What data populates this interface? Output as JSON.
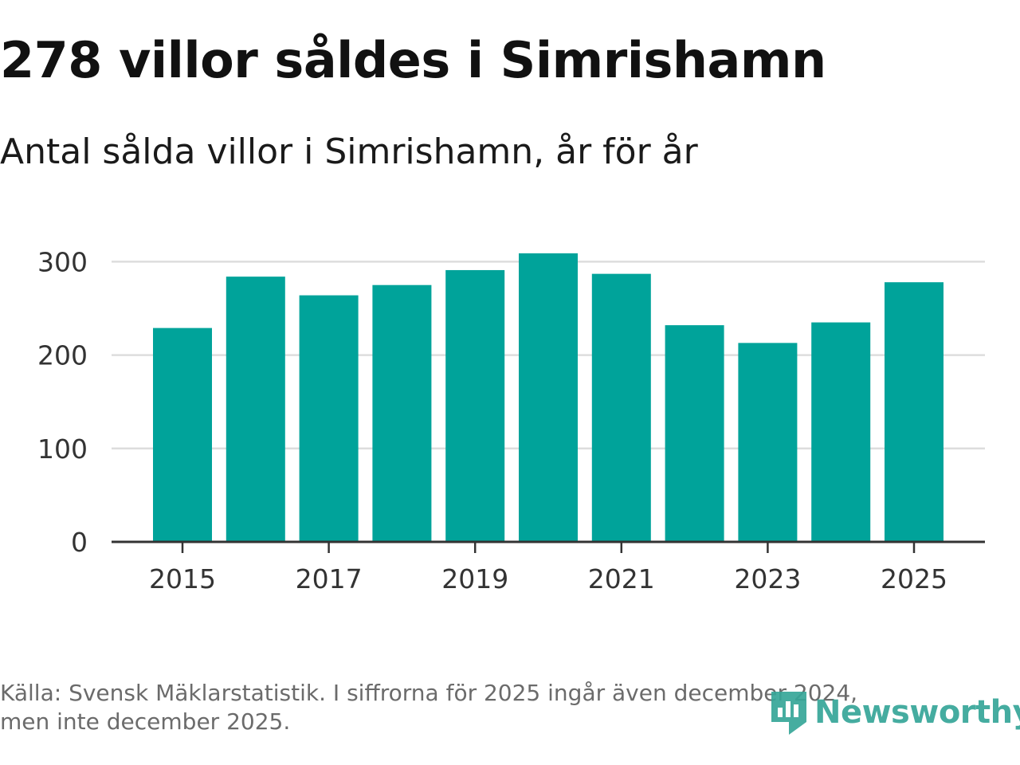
{
  "title": "278 villor såldes i Simrishamn",
  "subtitle": "Antal sålda villor i Simrishamn, år för år",
  "source_line1": "Källa: Svensk Mäklarstatistik. I siffrorna för 2025 ingår även december 2024,",
  "source_line2": "men inte december 2025.",
  "logo_text": "Newsworthy",
  "colors": {
    "bar": "#00A39A",
    "grid": "#dddddd",
    "axis": "#333333",
    "logo": "#36a698"
  },
  "chart_data": {
    "type": "bar",
    "title": "Antal sålda villor i Simrishamn, år för år",
    "xlabel": "",
    "ylabel": "",
    "categories": [
      "2015",
      "2016",
      "2017",
      "2018",
      "2019",
      "2020",
      "2021",
      "2022",
      "2023",
      "2024",
      "2025"
    ],
    "values": [
      229,
      284,
      264,
      275,
      291,
      309,
      287,
      232,
      213,
      235,
      278
    ],
    "x_tick_labels": [
      "2015",
      "2017",
      "2019",
      "2021",
      "2023",
      "2025"
    ],
    "y_ticks": [
      0,
      100,
      200,
      300
    ],
    "ylim": [
      0,
      315
    ],
    "grid": true
  }
}
